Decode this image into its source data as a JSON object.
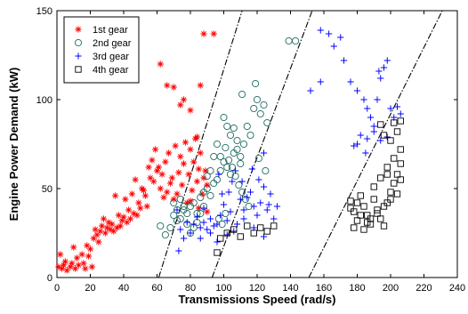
{
  "chart_data": {
    "type": "scatter",
    "xlabel": "Transmissions Speed (rad/s)",
    "ylabel": "Engine Power Demand (kW)",
    "xlim": [
      0,
      240
    ],
    "ylim": [
      0,
      150
    ],
    "x_ticks": [
      "0",
      "20",
      "40",
      "60",
      "80",
      "100",
      "120",
      "140",
      "160",
      "180",
      "200",
      "220",
      "240"
    ],
    "y_ticks": [
      "0",
      "50",
      "100",
      "150"
    ],
    "grid": false,
    "legend_position": "top-left",
    "series": [
      {
        "name": "1st gear",
        "marker": "asterisk",
        "color": "#ff0000",
        "points": [
          [
            1,
            6
          ],
          [
            2,
            13
          ],
          [
            3,
            5
          ],
          [
            4,
            7
          ],
          [
            5,
            9
          ],
          [
            6,
            4
          ],
          [
            8,
            6
          ],
          [
            9,
            8
          ],
          [
            10,
            17
          ],
          [
            11,
            5
          ],
          [
            12,
            11
          ],
          [
            13,
            7
          ],
          [
            15,
            13
          ],
          [
            16,
            8
          ],
          [
            17,
            5
          ],
          [
            18,
            18
          ],
          [
            19,
            12
          ],
          [
            20,
            16
          ],
          [
            21,
            6
          ],
          [
            22,
            22
          ],
          [
            23,
            27
          ],
          [
            24,
            24
          ],
          [
            25,
            20
          ],
          [
            26,
            26
          ],
          [
            27,
            29
          ],
          [
            28,
            33
          ],
          [
            29,
            25
          ],
          [
            30,
            28
          ],
          [
            31,
            31
          ],
          [
            32,
            27
          ],
          [
            33,
            30
          ],
          [
            34,
            26
          ],
          [
            35,
            46
          ],
          [
            36,
            28
          ],
          [
            37,
            35
          ],
          [
            38,
            29
          ],
          [
            39,
            32
          ],
          [
            40,
            34
          ],
          [
            41,
            44
          ],
          [
            42,
            31
          ],
          [
            43,
            38
          ],
          [
            44,
            33
          ],
          [
            45,
            47
          ],
          [
            46,
            36
          ],
          [
            47,
            55
          ],
          [
            48,
            35
          ],
          [
            49,
            42
          ],
          [
            50,
            39
          ],
          [
            51,
            50
          ],
          [
            52,
            49
          ],
          [
            53,
            46
          ],
          [
            54,
            40
          ],
          [
            55,
            62
          ],
          [
            56,
            56
          ],
          [
            57,
            66
          ],
          [
            58,
            54
          ],
          [
            59,
            72
          ],
          [
            60,
            60
          ],
          [
            61,
            62
          ],
          [
            62,
            50
          ],
          [
            63,
            58
          ],
          [
            64,
            45
          ],
          [
            65,
            65
          ],
          [
            66,
            48
          ],
          [
            67,
            70
          ],
          [
            68,
            53
          ],
          [
            69,
            56
          ],
          [
            70,
            44
          ],
          [
            71,
            74
          ],
          [
            72,
            47
          ],
          [
            73,
            59
          ],
          [
            74,
            68
          ],
          [
            75,
            52
          ],
          [
            76,
            64
          ],
          [
            77,
            76
          ],
          [
            78,
            42
          ],
          [
            79,
            58
          ],
          [
            80,
            72
          ],
          [
            81,
            49
          ],
          [
            82,
            65
          ],
          [
            83,
            78
          ],
          [
            84,
            54
          ],
          [
            85,
            61
          ],
          [
            86,
            70
          ],
          [
            87,
            47
          ],
          [
            88,
            56
          ],
          [
            89,
            60
          ],
          [
            90,
            52
          ],
          [
            62,
            120
          ],
          [
            66,
            108
          ],
          [
            70,
            107
          ],
          [
            74,
            97
          ],
          [
            76,
            100
          ],
          [
            80,
            94
          ],
          [
            84,
            79
          ],
          [
            86,
            108
          ],
          [
            88,
            137
          ],
          [
            94,
            137
          ],
          [
            80,
            43
          ],
          [
            85,
            39
          ],
          [
            90,
            37
          ]
        ]
      },
      {
        "name": "2nd gear",
        "marker": "circle",
        "color": "#1f6b63",
        "points": [
          [
            62,
            29
          ],
          [
            65,
            24
          ],
          [
            68,
            28
          ],
          [
            70,
            35
          ],
          [
            72,
            32
          ],
          [
            74,
            33
          ],
          [
            76,
            38
          ],
          [
            78,
            30
          ],
          [
            80,
            40
          ],
          [
            82,
            42
          ],
          [
            84,
            36
          ],
          [
            86,
            45
          ],
          [
            88,
            48
          ],
          [
            90,
            50
          ],
          [
            92,
            46
          ],
          [
            94,
            53
          ],
          [
            96,
            55
          ],
          [
            98,
            60
          ],
          [
            100,
            65
          ],
          [
            102,
            62
          ],
          [
            104,
            58
          ],
          [
            106,
            70
          ],
          [
            108,
            72
          ],
          [
            110,
            64
          ],
          [
            112,
            75
          ],
          [
            114,
            85
          ],
          [
            116,
            80
          ],
          [
            118,
            95
          ],
          [
            120,
            100
          ],
          [
            122,
            92
          ],
          [
            124,
            97
          ],
          [
            126,
            87
          ],
          [
            100,
            90
          ],
          [
            102,
            85
          ],
          [
            104,
            80
          ],
          [
            106,
            84
          ],
          [
            108,
            77
          ],
          [
            110,
            68
          ],
          [
            96,
            75
          ],
          [
            94,
            68
          ],
          [
            92,
            60
          ],
          [
            90,
            57
          ],
          [
            98,
            68
          ],
          [
            101,
            73
          ],
          [
            103,
            66
          ],
          [
            105,
            62
          ],
          [
            107,
            57
          ],
          [
            109,
            52
          ],
          [
            111,
            48
          ],
          [
            113,
            44
          ],
          [
            115,
            40
          ],
          [
            88,
            40
          ],
          [
            86,
            36
          ],
          [
            84,
            31
          ],
          [
            82,
            28
          ],
          [
            80,
            25
          ],
          [
            78,
            36
          ],
          [
            76,
            40
          ],
          [
            74,
            44
          ],
          [
            72,
            38
          ],
          [
            70,
            42
          ],
          [
            111,
            103
          ],
          [
            119,
            109
          ],
          [
            139,
            133
          ],
          [
            143,
            133
          ],
          [
            121,
            67
          ],
          [
            125,
            60
          ],
          [
            97,
            33
          ],
          [
            99,
            30
          ],
          [
            101,
            36
          ]
        ]
      },
      {
        "name": "3rd gear",
        "marker": "plus",
        "color": "#0000ff",
        "points": [
          [
            72,
            38
          ],
          [
            74,
            27
          ],
          [
            76,
            22
          ],
          [
            78,
            31
          ],
          [
            80,
            25
          ],
          [
            82,
            30
          ],
          [
            84,
            34
          ],
          [
            86,
            28
          ],
          [
            88,
            31
          ],
          [
            90,
            27
          ],
          [
            92,
            33
          ],
          [
            94,
            29
          ],
          [
            96,
            30
          ],
          [
            98,
            35
          ],
          [
            100,
            41
          ],
          [
            102,
            32
          ],
          [
            104,
            37
          ],
          [
            106,
            26
          ],
          [
            108,
            30
          ],
          [
            110,
            44
          ],
          [
            112,
            38
          ],
          [
            114,
            45
          ],
          [
            116,
            48
          ],
          [
            118,
            40
          ],
          [
            120,
            35
          ],
          [
            122,
            42
          ],
          [
            124,
            51
          ],
          [
            126,
            38
          ],
          [
            128,
            47
          ],
          [
            130,
            33
          ],
          [
            97,
            58
          ],
          [
            103,
            48
          ],
          [
            107,
            60
          ],
          [
            111,
            54
          ],
          [
            117,
            61
          ],
          [
            121,
            55
          ],
          [
            124,
            70
          ],
          [
            127,
            41
          ],
          [
            99,
            47
          ],
          [
            105,
            54
          ],
          [
            102,
            24
          ],
          [
            96,
            20
          ],
          [
            86,
            22
          ],
          [
            92,
            25
          ],
          [
            88,
            39
          ],
          [
            112,
            33
          ],
          [
            118,
            28
          ],
          [
            73,
            15
          ],
          [
            124,
            23
          ],
          [
            132,
            40
          ],
          [
            158,
            139
          ],
          [
            163,
            137
          ],
          [
            166,
            130
          ],
          [
            170,
            135
          ],
          [
            172,
            122
          ],
          [
            176,
            110
          ],
          [
            180,
            105
          ],
          [
            184,
            100
          ],
          [
            186,
            95
          ],
          [
            188,
            90
          ],
          [
            190,
            85
          ],
          [
            192,
            100
          ],
          [
            194,
            112
          ],
          [
            196,
            118
          ],
          [
            198,
            122
          ],
          [
            200,
            95
          ],
          [
            202,
            90
          ],
          [
            178,
            74
          ],
          [
            182,
            80
          ],
          [
            186,
            78
          ],
          [
            190,
            82
          ],
          [
            194,
            77
          ],
          [
            198,
            79
          ],
          [
            204,
            96
          ],
          [
            206,
            92
          ],
          [
            158,
            110
          ],
          [
            152,
            105
          ],
          [
            180,
            75
          ],
          [
            185,
            70
          ],
          [
            193,
            116
          ]
        ]
      },
      {
        "name": "4th gear",
        "marker": "square",
        "color": "#000000",
        "points": [
          [
            176,
            43
          ],
          [
            178,
            37
          ],
          [
            180,
            32
          ],
          [
            182,
            46
          ],
          [
            184,
            40
          ],
          [
            186,
            35
          ],
          [
            188,
            30
          ],
          [
            190,
            44
          ],
          [
            192,
            38
          ],
          [
            194,
            33
          ],
          [
            196,
            29
          ],
          [
            198,
            42
          ],
          [
            200,
            48
          ],
          [
            202,
            53
          ],
          [
            204,
            58
          ],
          [
            206,
            64
          ],
          [
            190,
            51
          ],
          [
            194,
            56
          ],
          [
            198,
            62
          ],
          [
            202,
            67
          ],
          [
            206,
            72
          ],
          [
            178,
            28
          ],
          [
            184,
            27
          ],
          [
            188,
            33
          ],
          [
            192,
            36
          ],
          [
            196,
            40
          ],
          [
            200,
            44
          ],
          [
            204,
            47
          ],
          [
            176,
            39
          ],
          [
            180,
            42
          ],
          [
            194,
            86
          ],
          [
            196,
            80
          ],
          [
            200,
            77
          ],
          [
            202,
            87
          ],
          [
            204,
            82
          ],
          [
            206,
            88
          ],
          [
            198,
            58
          ],
          [
            206,
            55
          ],
          [
            186,
            31
          ],
          [
            182,
            35
          ],
          [
            98,
            22
          ],
          [
            102,
            25
          ],
          [
            106,
            27
          ],
          [
            110,
            23
          ],
          [
            114,
            29
          ],
          [
            118,
            25
          ],
          [
            122,
            28
          ],
          [
            126,
            26
          ],
          [
            130,
            29
          ],
          [
            96,
            14
          ]
        ]
      }
    ],
    "boundary_lines": [
      {
        "points": [
          [
            61,
            0
          ],
          [
            111,
            150
          ]
        ]
      },
      {
        "points": [
          [
            93,
            0
          ],
          [
            153,
            150
          ]
        ]
      },
      {
        "points": [
          [
            151,
            0
          ],
          [
            231,
            150
          ]
        ]
      }
    ]
  }
}
